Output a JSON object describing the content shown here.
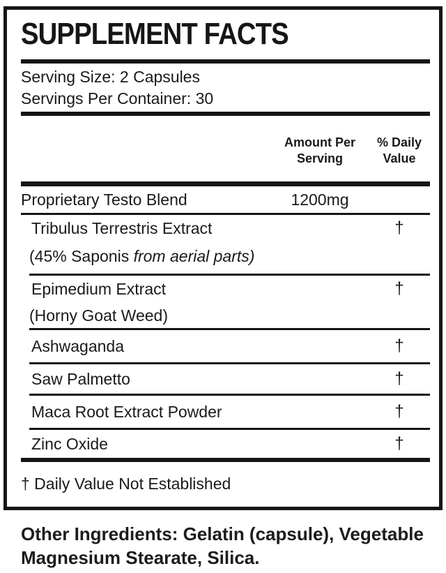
{
  "panel": {
    "title": "SUPPLEMENT FACTS",
    "serving_size": "Serving Size: 2 Capsules",
    "servings_per_container": "Servings Per Container: 30",
    "col_amount_header": "Amount Per Serving",
    "col_daily_header": "% Daily Value",
    "rows": [
      {
        "name": "Proprietary Testo Blend",
        "amount": "1200mg",
        "daily": ""
      },
      {
        "name": "Tribulus Terrestris Extract",
        "amount": "",
        "daily": "†",
        "sub_regular": "(45% Saponis ",
        "sub_italic": "from aerial parts)"
      },
      {
        "name": "Epimedium Extract",
        "amount": "",
        "daily": "†",
        "sub_regular": "(Horny Goat Weed)",
        "sub_italic": ""
      },
      {
        "name": "Ashwaganda",
        "amount": "",
        "daily": "†"
      },
      {
        "name": "Saw Palmetto",
        "amount": "",
        "daily": "†"
      },
      {
        "name": "Maca Root Extract Powder",
        "amount": "",
        "daily": "†"
      },
      {
        "name": "Zinc Oxide",
        "amount": "",
        "daily": "†"
      }
    ],
    "footnote": "† Daily Value Not Established"
  },
  "other_ingredients": "Other Ingredients: Gelatin (capsule), Vegetable Magnesium Stearate, Silica.",
  "colors": {
    "ink": "#1a1a1a",
    "rule": "#151515",
    "background": "#ffffff"
  }
}
